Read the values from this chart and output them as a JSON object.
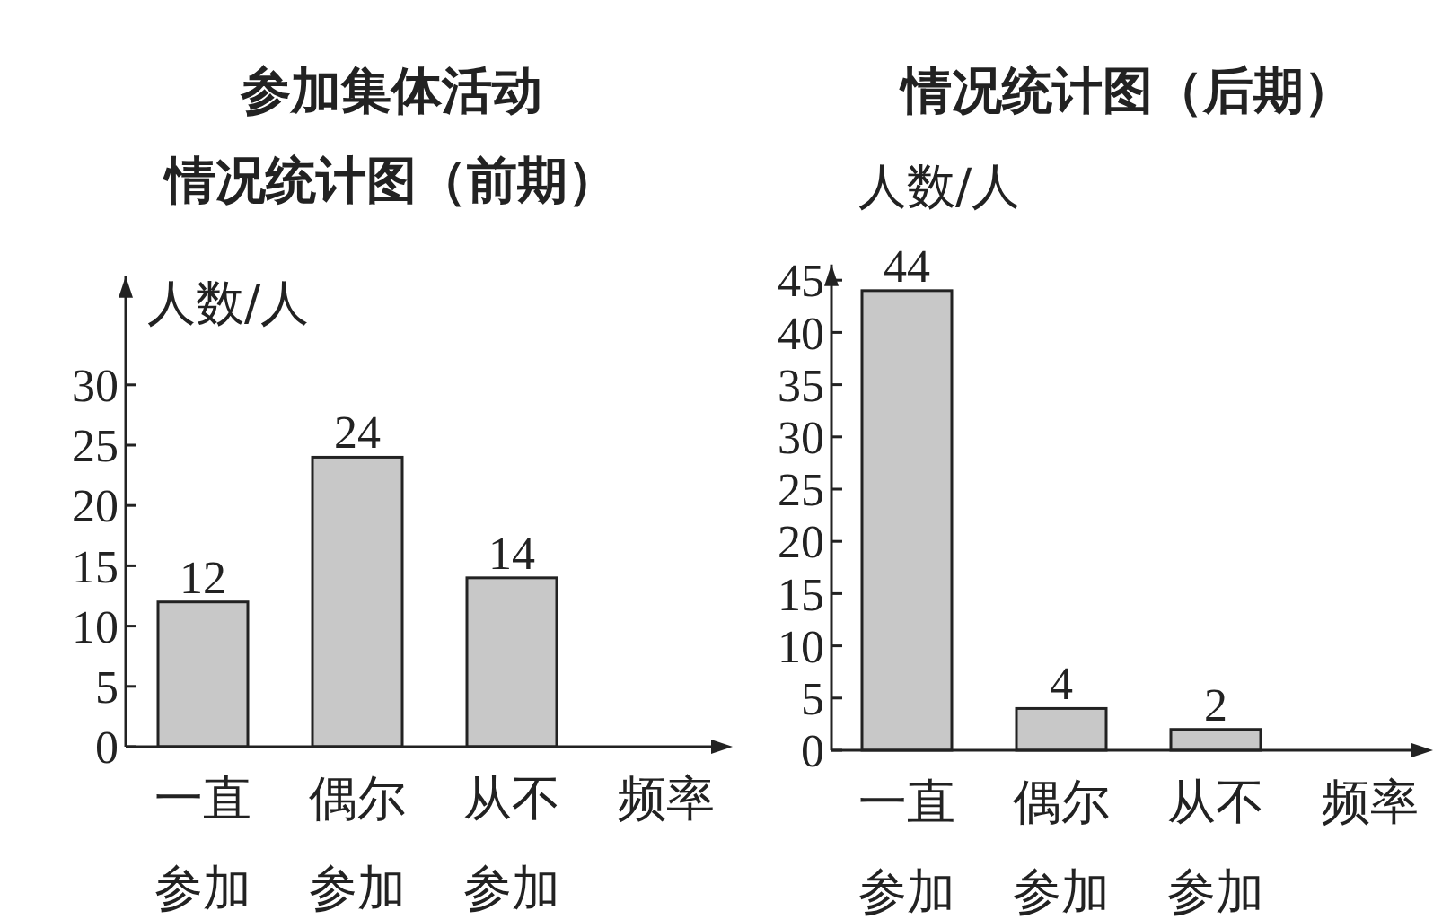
{
  "chart_data": [
    {
      "type": "bar",
      "title": "参加集体活动情况统计图（前期）",
      "ylabel": "人数/人",
      "xlabel": "频率",
      "categories": [
        "一直参加",
        "偶尔参加",
        "从不参加"
      ],
      "values": [
        12,
        24,
        14
      ],
      "color": "#c8c8c8",
      "ylim": [
        0,
        39
      ],
      "yticks": [
        0,
        5,
        10,
        15,
        20,
        25,
        30
      ],
      "data_labels": true
    },
    {
      "type": "bar",
      "title": "情况统计图（后期）",
      "ylabel": "人数/人",
      "xlabel": "频率",
      "categories": [
        "一直参加",
        "偶尔参加",
        "从不参加"
      ],
      "values": [
        44,
        4,
        2
      ],
      "color": "#c8c8c8",
      "ylim": [
        0,
        46.5
      ],
      "yticks": [
        0,
        5,
        10,
        15,
        20,
        25,
        30,
        35,
        40,
        45
      ],
      "data_labels": true
    }
  ]
}
